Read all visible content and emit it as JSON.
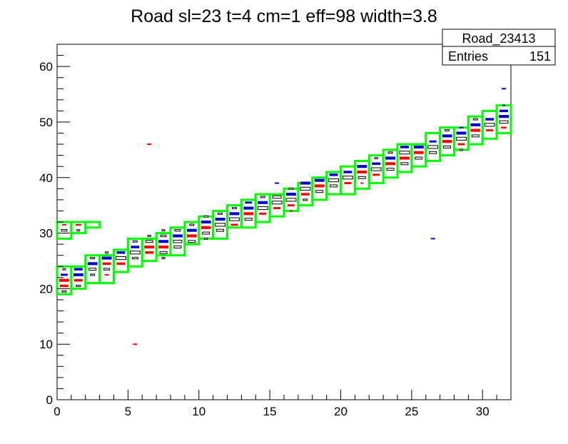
{
  "chart_data": {
    "type": "heatmap",
    "title": "Road sl=23 t=4 cm=1 eff=98 width=3.8",
    "xlabel": "",
    "ylabel": "",
    "xlim": [
      0,
      32
    ],
    "ylim": [
      0,
      64
    ],
    "x_ticks": [
      0,
      5,
      10,
      15,
      20,
      25,
      30
    ],
    "y_ticks": [
      0,
      10,
      20,
      30,
      40,
      50,
      60
    ],
    "grid": false,
    "colors": {
      "road_box": "#00ff00",
      "cell_blue": "#0000cc",
      "cell_red": "#ff0000",
      "cell_outline": "#000000"
    },
    "stats_box": {
      "name": "Road_23413",
      "entries_label": "Entries",
      "entries_value": "151"
    },
    "road_boxes": [
      {
        "x": 0,
        "y1": 19,
        "y2": 24
      },
      {
        "x": 0,
        "y1": 29,
        "y2": 32
      },
      {
        "x": 1,
        "y1": 20,
        "y2": 24
      },
      {
        "x": 1,
        "y1": 30,
        "y2": 32
      },
      {
        "x": 2,
        "y1": 21,
        "y2": 26
      },
      {
        "x": 2,
        "y1": 31,
        "y2": 32
      },
      {
        "x": 3,
        "y1": 21,
        "y2": 26
      },
      {
        "x": 4,
        "y1": 23,
        "y2": 27
      },
      {
        "x": 5,
        "y1": 24,
        "y2": 29
      },
      {
        "x": 6,
        "y1": 25,
        "y2": 29
      },
      {
        "x": 7,
        "y1": 26,
        "y2": 30
      },
      {
        "x": 8,
        "y1": 26,
        "y2": 31
      },
      {
        "x": 9,
        "y1": 28,
        "y2": 32
      },
      {
        "x": 10,
        "y1": 29,
        "y2": 33
      },
      {
        "x": 11,
        "y1": 29,
        "y2": 34
      },
      {
        "x": 12,
        "y1": 31,
        "y2": 35
      },
      {
        "x": 13,
        "y1": 31,
        "y2": 36
      },
      {
        "x": 14,
        "y1": 32,
        "y2": 37
      },
      {
        "x": 15,
        "y1": 33,
        "y2": 37
      },
      {
        "x": 16,
        "y1": 34,
        "y2": 38
      },
      {
        "x": 17,
        "y1": 35,
        "y2": 39
      },
      {
        "x": 18,
        "y1": 36,
        "y2": 40
      },
      {
        "x": 19,
        "y1": 37,
        "y2": 41
      },
      {
        "x": 20,
        "y1": 37,
        "y2": 42
      },
      {
        "x": 21,
        "y1": 38,
        "y2": 43
      },
      {
        "x": 22,
        "y1": 39,
        "y2": 44
      },
      {
        "x": 23,
        "y1": 40,
        "y2": 45
      },
      {
        "x": 24,
        "y1": 41,
        "y2": 46
      },
      {
        "x": 25,
        "y1": 42,
        "y2": 46
      },
      {
        "x": 26,
        "y1": 43,
        "y2": 48
      },
      {
        "x": 27,
        "y1": 44,
        "y2": 49
      },
      {
        "x": 28,
        "y1": 45,
        "y2": 49
      },
      {
        "x": 29,
        "y1": 46,
        "y2": 51
      },
      {
        "x": 30,
        "y1": 47,
        "y2": 52
      },
      {
        "x": 31,
        "y1": 48,
        "y2": 53
      }
    ],
    "cells": [
      {
        "x": 0,
        "y": 19,
        "w": 0.3,
        "c": "box"
      },
      {
        "x": 0,
        "y": 20,
        "w": 0.6,
        "c": "red"
      },
      {
        "x": 0,
        "y": 21,
        "w": 0.7,
        "c": "red"
      },
      {
        "x": 0,
        "y": 22,
        "w": 0.5,
        "c": "blue"
      },
      {
        "x": 0,
        "y": 23,
        "w": 0.2,
        "c": "box"
      },
      {
        "x": 0,
        "y": 30,
        "w": 0.4,
        "c": "box"
      },
      {
        "x": 0,
        "y": 31,
        "w": 0.3,
        "c": "red"
      },
      {
        "x": 1,
        "y": 20,
        "w": 0.3,
        "c": "box"
      },
      {
        "x": 1,
        "y": 21,
        "w": 0.6,
        "c": "red"
      },
      {
        "x": 1,
        "y": 22,
        "w": 0.7,
        "c": "blue"
      },
      {
        "x": 1,
        "y": 23,
        "w": 0.6,
        "c": "blue"
      },
      {
        "x": 1,
        "y": 30,
        "w": 0.2,
        "c": "box"
      },
      {
        "x": 1,
        "y": 31,
        "w": 0.4,
        "c": "red"
      },
      {
        "x": 2,
        "y": 22,
        "w": 0.3,
        "c": "box"
      },
      {
        "x": 2,
        "y": 23,
        "w": 0.5,
        "c": "box"
      },
      {
        "x": 2,
        "y": 24,
        "w": 0.7,
        "c": "blue"
      },
      {
        "x": 2,
        "y": 25,
        "w": 0.3,
        "c": "box"
      },
      {
        "x": 3,
        "y": 22,
        "w": 0.3,
        "c": "red"
      },
      {
        "x": 3,
        "y": 23,
        "w": 0.4,
        "c": "box"
      },
      {
        "x": 3,
        "y": 24,
        "w": 0.6,
        "c": "red"
      },
      {
        "x": 3,
        "y": 25,
        "w": 0.7,
        "c": "blue"
      },
      {
        "x": 3,
        "y": 26,
        "w": 0.2,
        "c": "box"
      },
      {
        "x": 4,
        "y": 24,
        "w": 0.6,
        "c": "red"
      },
      {
        "x": 4,
        "y": 25,
        "w": 0.7,
        "c": "box"
      },
      {
        "x": 4,
        "y": 26,
        "w": 0.6,
        "c": "blue"
      },
      {
        "x": 5,
        "y": 25,
        "w": 0.4,
        "c": "box"
      },
      {
        "x": 5,
        "y": 26,
        "w": 0.7,
        "c": "box"
      },
      {
        "x": 5,
        "y": 27,
        "w": 0.6,
        "c": "blue"
      },
      {
        "x": 5,
        "y": 28,
        "w": 0.3,
        "c": "box"
      },
      {
        "x": 5,
        "y": 9.5,
        "w": 0.3,
        "c": "red"
      },
      {
        "x": 6,
        "y": 26,
        "w": 0.6,
        "c": "red"
      },
      {
        "x": 6,
        "y": 27,
        "w": 0.7,
        "c": "red"
      },
      {
        "x": 6,
        "y": 28,
        "w": 0.5,
        "c": "box"
      },
      {
        "x": 6,
        "y": 29,
        "w": 0.2,
        "c": "box"
      },
      {
        "x": 6,
        "y": 45.5,
        "w": 0.3,
        "c": "red"
      },
      {
        "x": 7,
        "y": 25,
        "w": 0.2,
        "c": "box"
      },
      {
        "x": 7,
        "y": 26,
        "w": 0.5,
        "c": "box"
      },
      {
        "x": 7,
        "y": 27,
        "w": 0.7,
        "c": "red"
      },
      {
        "x": 7,
        "y": 28,
        "w": 0.7,
        "c": "blue"
      },
      {
        "x": 7,
        "y": 29,
        "w": 0.4,
        "c": "box"
      },
      {
        "x": 7,
        "y": 30,
        "w": 0.2,
        "c": "box"
      },
      {
        "x": 8,
        "y": 27,
        "w": 0.5,
        "c": "box"
      },
      {
        "x": 8,
        "y": 28,
        "w": 0.6,
        "c": "box"
      },
      {
        "x": 8,
        "y": 29,
        "w": 0.7,
        "c": "blue"
      },
      {
        "x": 8,
        "y": 30,
        "w": 0.4,
        "c": "box"
      },
      {
        "x": 9,
        "y": 28,
        "w": 0.5,
        "c": "box"
      },
      {
        "x": 9,
        "y": 29,
        "w": 0.7,
        "c": "red"
      },
      {
        "x": 9,
        "y": 30,
        "w": 0.7,
        "c": "blue"
      },
      {
        "x": 9,
        "y": 31,
        "w": 0.3,
        "c": "box"
      },
      {
        "x": 10,
        "y": 28.5,
        "w": 0.2,
        "c": "box"
      },
      {
        "x": 10,
        "y": 29.5,
        "w": 0.5,
        "c": "box"
      },
      {
        "x": 10,
        "y": 30.5,
        "w": 0.7,
        "c": "red"
      },
      {
        "x": 10,
        "y": 31.5,
        "w": 0.7,
        "c": "blue"
      },
      {
        "x": 10,
        "y": 32.5,
        "w": 0.3,
        "c": "box"
      },
      {
        "x": 11,
        "y": 30,
        "w": 0.5,
        "c": "box"
      },
      {
        "x": 11,
        "y": 31,
        "w": 0.7,
        "c": "box"
      },
      {
        "x": 11,
        "y": 32,
        "w": 0.7,
        "c": "blue"
      },
      {
        "x": 11,
        "y": 33,
        "w": 0.3,
        "c": "box"
      },
      {
        "x": 12,
        "y": 31,
        "w": 0.5,
        "c": "red"
      },
      {
        "x": 12,
        "y": 32,
        "w": 0.7,
        "c": "box"
      },
      {
        "x": 12,
        "y": 33,
        "w": 0.7,
        "c": "blue"
      },
      {
        "x": 12,
        "y": 34,
        "w": 0.3,
        "c": "box"
      },
      {
        "x": 13,
        "y": 32,
        "w": 0.5,
        "c": "box"
      },
      {
        "x": 13,
        "y": 33,
        "w": 0.7,
        "c": "red"
      },
      {
        "x": 13,
        "y": 34,
        "w": 0.7,
        "c": "blue"
      },
      {
        "x": 13,
        "y": 35,
        "w": 0.5,
        "c": "blue"
      },
      {
        "x": 14,
        "y": 33,
        "w": 0.5,
        "c": "red"
      },
      {
        "x": 14,
        "y": 34,
        "w": 0.7,
        "c": "box"
      },
      {
        "x": 14,
        "y": 35,
        "w": 0.7,
        "c": "blue"
      },
      {
        "x": 14,
        "y": 36,
        "w": 0.3,
        "c": "box"
      },
      {
        "x": 15,
        "y": 34,
        "w": 0.5,
        "c": "red"
      },
      {
        "x": 15,
        "y": 35,
        "w": 0.7,
        "c": "box"
      },
      {
        "x": 15,
        "y": 36,
        "w": 0.6,
        "c": "box"
      },
      {
        "x": 15,
        "y": 38.5,
        "w": 0.3,
        "c": "blue"
      },
      {
        "x": 16,
        "y": 33.5,
        "w": 0.2,
        "c": "red"
      },
      {
        "x": 16,
        "y": 34.5,
        "w": 0.5,
        "c": "red"
      },
      {
        "x": 16,
        "y": 35.5,
        "w": 0.7,
        "c": "box"
      },
      {
        "x": 16,
        "y": 36.5,
        "w": 0.7,
        "c": "blue"
      },
      {
        "x": 16,
        "y": 37.5,
        "w": 0.3,
        "c": "box"
      },
      {
        "x": 17,
        "y": 35.5,
        "w": 0.3,
        "c": "box"
      },
      {
        "x": 17,
        "y": 36.5,
        "w": 0.6,
        "c": "red"
      },
      {
        "x": 17,
        "y": 37.5,
        "w": 0.7,
        "c": "box"
      },
      {
        "x": 17,
        "y": 38.5,
        "w": 0.7,
        "c": "blue"
      },
      {
        "x": 18,
        "y": 37,
        "w": 0.5,
        "c": "box"
      },
      {
        "x": 18,
        "y": 38,
        "w": 0.7,
        "c": "red"
      },
      {
        "x": 18,
        "y": 39,
        "w": 0.7,
        "c": "blue"
      },
      {
        "x": 19,
        "y": 38,
        "w": 0.5,
        "c": "box"
      },
      {
        "x": 19,
        "y": 39,
        "w": 0.7,
        "c": "box"
      },
      {
        "x": 19,
        "y": 40,
        "w": 0.6,
        "c": "blue"
      },
      {
        "x": 20,
        "y": 38.5,
        "w": 0.5,
        "c": "red"
      },
      {
        "x": 20,
        "y": 39.5,
        "w": 0.7,
        "c": "box"
      },
      {
        "x": 20,
        "y": 40.5,
        "w": 0.6,
        "c": "blue"
      },
      {
        "x": 21,
        "y": 38.5,
        "w": 0.2,
        "c": "red"
      },
      {
        "x": 21,
        "y": 39.5,
        "w": 0.5,
        "c": "box"
      },
      {
        "x": 21,
        "y": 40.5,
        "w": 0.7,
        "c": "red"
      },
      {
        "x": 21,
        "y": 41.5,
        "w": 0.7,
        "c": "blue"
      },
      {
        "x": 22,
        "y": 40,
        "w": 0.5,
        "c": "red"
      },
      {
        "x": 22,
        "y": 41,
        "w": 0.7,
        "c": "box"
      },
      {
        "x": 22,
        "y": 42,
        "w": 0.6,
        "c": "blue"
      },
      {
        "x": 22,
        "y": 43,
        "w": 0.2,
        "c": "box"
      },
      {
        "x": 23,
        "y": 41,
        "w": 0.5,
        "c": "box"
      },
      {
        "x": 23,
        "y": 42,
        "w": 0.7,
        "c": "red"
      },
      {
        "x": 23,
        "y": 43,
        "w": 0.7,
        "c": "blue"
      },
      {
        "x": 23,
        "y": 44,
        "w": 0.3,
        "c": "box"
      },
      {
        "x": 24,
        "y": 42,
        "w": 0.5,
        "c": "box"
      },
      {
        "x": 24,
        "y": 43,
        "w": 0.7,
        "c": "red"
      },
      {
        "x": 24,
        "y": 44,
        "w": 0.7,
        "c": "box"
      },
      {
        "x": 24,
        "y": 45,
        "w": 0.6,
        "c": "blue"
      },
      {
        "x": 25,
        "y": 43,
        "w": 0.5,
        "c": "box"
      },
      {
        "x": 25,
        "y": 44,
        "w": 0.7,
        "c": "red"
      },
      {
        "x": 25,
        "y": 45,
        "w": 0.7,
        "c": "blue"
      },
      {
        "x": 26,
        "y": 44,
        "w": 0.5,
        "c": "box"
      },
      {
        "x": 26,
        "y": 45,
        "w": 0.7,
        "c": "box"
      },
      {
        "x": 26,
        "y": 46,
        "w": 0.5,
        "c": "blue"
      },
      {
        "x": 26,
        "y": 28.5,
        "w": 0.3,
        "c": "blue"
      },
      {
        "x": 27,
        "y": 45,
        "w": 0.5,
        "c": "box"
      },
      {
        "x": 27,
        "y": 46,
        "w": 0.7,
        "c": "red"
      },
      {
        "x": 27,
        "y": 47,
        "w": 0.7,
        "c": "blue"
      },
      {
        "x": 27,
        "y": 48,
        "w": 0.3,
        "c": "box"
      },
      {
        "x": 28,
        "y": 44.5,
        "w": 0.2,
        "c": "box"
      },
      {
        "x": 28,
        "y": 45.5,
        "w": 0.5,
        "c": "red"
      },
      {
        "x": 28,
        "y": 46.5,
        "w": 0.7,
        "c": "box"
      },
      {
        "x": 28,
        "y": 47.5,
        "w": 0.7,
        "c": "blue"
      },
      {
        "x": 28,
        "y": 48.5,
        "w": 0.3,
        "c": "blue"
      },
      {
        "x": 29,
        "y": 47,
        "w": 0.5,
        "c": "box"
      },
      {
        "x": 29,
        "y": 48,
        "w": 0.7,
        "c": "red"
      },
      {
        "x": 29,
        "y": 49,
        "w": 0.7,
        "c": "blue"
      },
      {
        "x": 29,
        "y": 50,
        "w": 0.3,
        "c": "box"
      },
      {
        "x": 30,
        "y": 48,
        "w": 0.5,
        "c": "red"
      },
      {
        "x": 30,
        "y": 49,
        "w": 0.7,
        "c": "box"
      },
      {
        "x": 30,
        "y": 50,
        "w": 0.6,
        "c": "blue"
      },
      {
        "x": 31,
        "y": 48.5,
        "w": 0.4,
        "c": "red"
      },
      {
        "x": 31,
        "y": 49.5,
        "w": 0.6,
        "c": "box"
      },
      {
        "x": 31,
        "y": 50.5,
        "w": 0.7,
        "c": "blue"
      },
      {
        "x": 31,
        "y": 51.5,
        "w": 0.6,
        "c": "blue"
      },
      {
        "x": 31,
        "y": 52.5,
        "w": 0.2,
        "c": "blue"
      },
      {
        "x": 31,
        "y": 55.5,
        "w": 0.3,
        "c": "blue"
      }
    ]
  }
}
